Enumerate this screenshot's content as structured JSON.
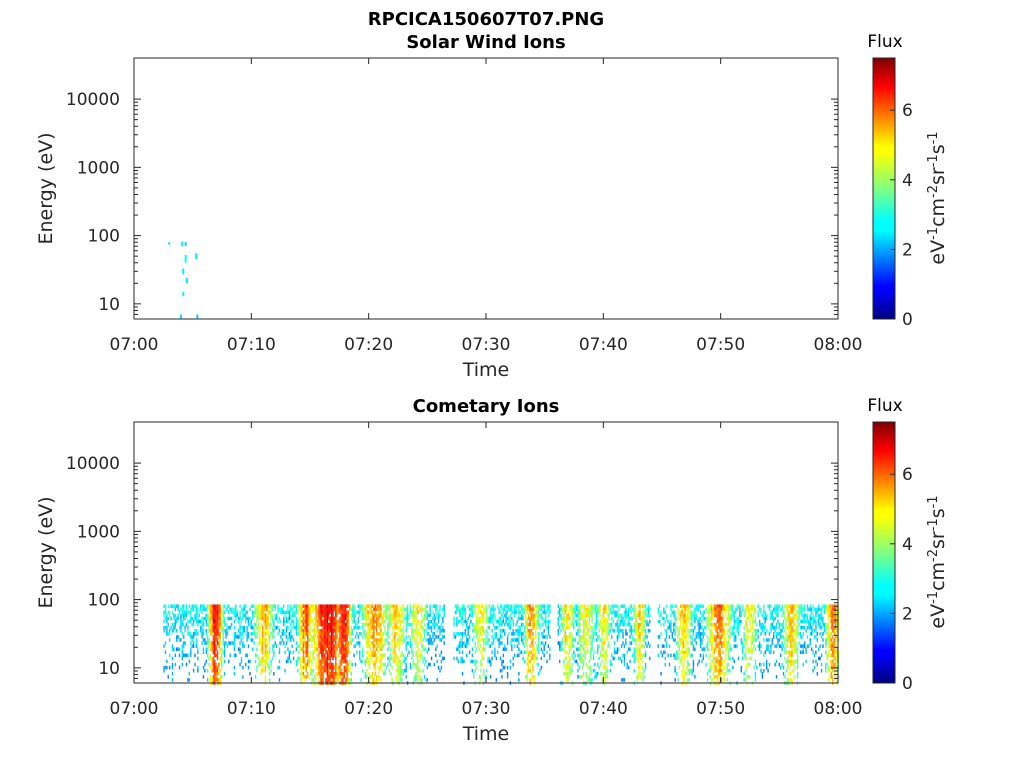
{
  "figure": {
    "title": "RPCICA150607T07.PNG"
  },
  "chart_data": [
    {
      "type": "heatmap",
      "title": "Solar Wind Ions",
      "xlabel": "Time",
      "ylabel": "Energy (eV)",
      "x_units": "minutes after 07:00",
      "xlim": [
        0,
        60
      ],
      "ylim": [
        6,
        40000
      ],
      "yscale": "log",
      "x_ticks": [
        0,
        10,
        20,
        30,
        40,
        50,
        60
      ],
      "x_tick_labels": [
        "07:00",
        "07:10",
        "07:20",
        "07:30",
        "07:40",
        "07:50",
        "08:00"
      ],
      "y_ticks": [
        10,
        100,
        1000,
        10000
      ],
      "y_tick_labels": [
        "10",
        "100",
        "1000",
        "10000"
      ],
      "colorbar": {
        "title": "Flux",
        "label": "eV-1cm-2sr-1s-1",
        "range": [
          0,
          7.5
        ],
        "ticks": [
          0,
          2,
          4,
          6
        ],
        "colormap": "jet"
      },
      "cells": [
        {
          "x": 3.0,
          "emin": 74,
          "emax": 80,
          "flux": 2.6
        },
        {
          "x": 4.1,
          "emin": 70,
          "emax": 82,
          "flux": 2.8
        },
        {
          "x": 4.4,
          "emin": 70,
          "emax": 80,
          "flux": 2.5
        },
        {
          "x": 4.4,
          "emin": 40,
          "emax": 52,
          "flux": 2.9
        },
        {
          "x": 4.2,
          "emin": 27,
          "emax": 33,
          "flux": 2.7
        },
        {
          "x": 4.5,
          "emin": 20,
          "emax": 24,
          "flux": 2.6
        },
        {
          "x": 4.2,
          "emin": 13,
          "emax": 15,
          "flux": 2.8
        },
        {
          "x": 5.3,
          "emin": 45,
          "emax": 55,
          "flux": 2.7
        },
        {
          "x": 4.0,
          "emin": 6,
          "emax": 7,
          "flux": 2.6
        },
        {
          "x": 5.4,
          "emin": 6,
          "emax": 7,
          "flux": 2.5
        }
      ]
    },
    {
      "type": "heatmap",
      "title": "Cometary Ions",
      "xlabel": "Time",
      "ylabel": "Energy (eV)",
      "x_units": "minutes after 07:00",
      "xlim": [
        0,
        60
      ],
      "ylim": [
        6,
        40000
      ],
      "yscale": "log",
      "x_ticks": [
        0,
        10,
        20,
        30,
        40,
        50,
        60
      ],
      "x_tick_labels": [
        "07:00",
        "07:10",
        "07:20",
        "07:30",
        "07:40",
        "07:50",
        "08:00"
      ],
      "y_ticks": [
        10,
        100,
        1000,
        10000
      ],
      "y_tick_labels": [
        "10",
        "100",
        "1000",
        "10000"
      ],
      "colorbar": {
        "title": "Flux",
        "label": "eV-1cm-2sr-1s-1",
        "range": [
          0,
          7.5
        ],
        "ticks": [
          0,
          2,
          4,
          6
        ],
        "colormap": "jet"
      },
      "activity": {
        "energy_range": [
          6,
          80
        ],
        "start": 2.5,
        "end": 60,
        "gaps": [
          [
            26.5,
            27.2
          ],
          [
            35.5,
            36.0
          ],
          [
            44.0,
            44.5
          ]
        ],
        "peaks": [
          {
            "x": 6.9,
            "flux": 6.6,
            "width": 0.7
          },
          {
            "x": 11.0,
            "flux": 5.4,
            "width": 1.0
          },
          {
            "x": 14.6,
            "flux": 6.0,
            "width": 0.8
          },
          {
            "x": 16.5,
            "flux": 6.8,
            "width": 1.6
          },
          {
            "x": 17.8,
            "flux": 6.6,
            "width": 0.8
          },
          {
            "x": 20.5,
            "flux": 5.8,
            "width": 1.3
          },
          {
            "x": 22.3,
            "flux": 5.3,
            "width": 1.0
          },
          {
            "x": 24.2,
            "flux": 4.8,
            "width": 1.0
          },
          {
            "x": 29.5,
            "flux": 4.8,
            "width": 1.0
          },
          {
            "x": 33.8,
            "flux": 5.6,
            "width": 0.8
          },
          {
            "x": 36.9,
            "flux": 5.3,
            "width": 0.7
          },
          {
            "x": 38.5,
            "flux": 4.8,
            "width": 1.0
          },
          {
            "x": 40.0,
            "flux": 5.1,
            "width": 0.7
          },
          {
            "x": 43.0,
            "flux": 5.2,
            "width": 0.7
          },
          {
            "x": 46.8,
            "flux": 5.6,
            "width": 0.8
          },
          {
            "x": 49.8,
            "flux": 6.0,
            "width": 1.2
          },
          {
            "x": 52.4,
            "flux": 5.0,
            "width": 0.8
          },
          {
            "x": 56.0,
            "flux": 5.4,
            "width": 0.8
          },
          {
            "x": 59.5,
            "flux": 5.8,
            "width": 0.8
          }
        ]
      }
    }
  ]
}
